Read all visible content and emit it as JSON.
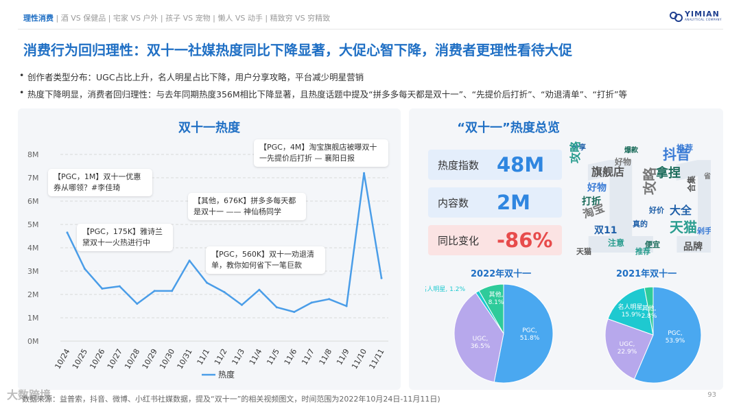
{
  "nav": {
    "items": [
      "理性消费",
      "酒 VS 保健品",
      "宅家 VS 户外",
      "孩子 VS 宠物",
      "懒人 VS 动手",
      "精致穷 VS 穷精致"
    ],
    "active_index": 0
  },
  "logo": {
    "name": "YIMIAN",
    "tagline": "ANALYTICAL COMPANY"
  },
  "headline": "消费行为回归理性：双十一社媒热度同比下降显著，大促心智下降，消费者更理性看待大促",
  "bullets": [
    "创作者类型分布：UGC占比上升，名人明星占比下降，用户分享攻略，平台减少明星营销",
    "热度下降明显，消费者回归理性：与去年同期热度356M相比下降显著，且热度话题中提及“拼多多每天都是双十一”、“先提价后打折”、“劝退清单”、“打折”等"
  ],
  "line_chart_title": "双十一热度",
  "callouts": [
    {
      "text": "【PGC，1M】双十一优惠券从哪领？#李佳琦"
    },
    {
      "text": "【PGC，175K】雅诗兰黛双十一火热进行中"
    },
    {
      "text": "【其他，676K】拼多多每天都是双十一 —— 神仙杨同学"
    },
    {
      "text": "【PGC，560K】双十一劝退清单，教你如何省下一笔巨款"
    },
    {
      "text": "【PGC，4M】淘宝旗舰店被曝双十一先提价后打折 — 襄阳日报"
    }
  ],
  "overview_title": "“双十一”热度总览",
  "metrics": [
    {
      "label": "热度指数",
      "value": "48M"
    },
    {
      "label": "内容数",
      "value": "2M"
    },
    {
      "label": "同比变化",
      "value": "-86%"
    }
  ],
  "wordcloud": {
    "shape_text": "11",
    "words": [
      "分享",
      "攻略",
      "旗舰店",
      "好物",
      "打折",
      "淘宝",
      "双11",
      "注意",
      "天猫",
      "抖音",
      "拿捏",
      "攻略",
      "大全",
      "天猫",
      "品牌",
      "推荐",
      "便宜",
      "好物",
      "真的",
      "推荐",
      "合集",
      "剁手",
      "爆款",
      "省钱",
      "好价"
    ]
  },
  "source": "数据来源：益普索，抖音、微博、小红书社媒数据，提及“双十一”的相关视频图文，时间范围为2022年10月24日-11月11日)",
  "page_number": "93",
  "watermark": "大数跨境",
  "colors": {
    "accent": "#1f6fc4",
    "line": "#4a9de8",
    "pgc": "#4aa8f0",
    "ugc": "#b7a8ec",
    "celebrity": "#1ec9d0",
    "other": "#2ecb9a",
    "negative": "#e74b4b"
  },
  "chart_data": [
    {
      "type": "line",
      "title": "双十一热度",
      "categories": [
        "10/24",
        "10/25",
        "10/26",
        "10/27",
        "10/28",
        "10/29",
        "10/30",
        "10/31",
        "11/1",
        "11/2",
        "11/3",
        "11/4",
        "11/5",
        "11/6",
        "11/7",
        "11/8",
        "11/9",
        "11/10",
        "11/11"
      ],
      "series": [
        {
          "name": "热度",
          "unit": "M",
          "values": [
            4.65,
            3.1,
            2.25,
            2.35,
            1.6,
            2.15,
            2.15,
            3.45,
            2.5,
            2.1,
            1.55,
            2.2,
            1.45,
            1.25,
            1.65,
            1.8,
            1.5,
            7.2,
            2.7
          ]
        }
      ],
      "y_ticks": [
        "0M",
        "1M",
        "2M",
        "3M",
        "4M",
        "5M",
        "6M",
        "7M",
        "8M"
      ],
      "ylim": [
        0,
        8
      ],
      "legend": "bottom"
    },
    {
      "type": "pie",
      "title": "2022年双十一",
      "slices": [
        {
          "label": "PGC",
          "value": 51.8,
          "display": "PGC,\n51.8%"
        },
        {
          "label": "UGC",
          "value": 36.5,
          "display": "UGC,\n36.5%"
        },
        {
          "label": "名人明星",
          "value": 1.2,
          "display": "名人明星, 1.2%"
        },
        {
          "label": "其他",
          "value": 8.1,
          "display": "其他,\n8.1%"
        }
      ]
    },
    {
      "type": "pie",
      "title": "2021年双十一",
      "slices": [
        {
          "label": "PGC",
          "value": 53.9,
          "display": "PGC,\n53.9%"
        },
        {
          "label": "UGC",
          "value": 22.9,
          "display": "UGC,\n22.9%"
        },
        {
          "label": "名人明星",
          "value": 15.9,
          "display": "名人明星,\n15.9%"
        },
        {
          "label": "其他",
          "value": 2.8,
          "display": "其他,\n2.8%"
        }
      ]
    }
  ]
}
